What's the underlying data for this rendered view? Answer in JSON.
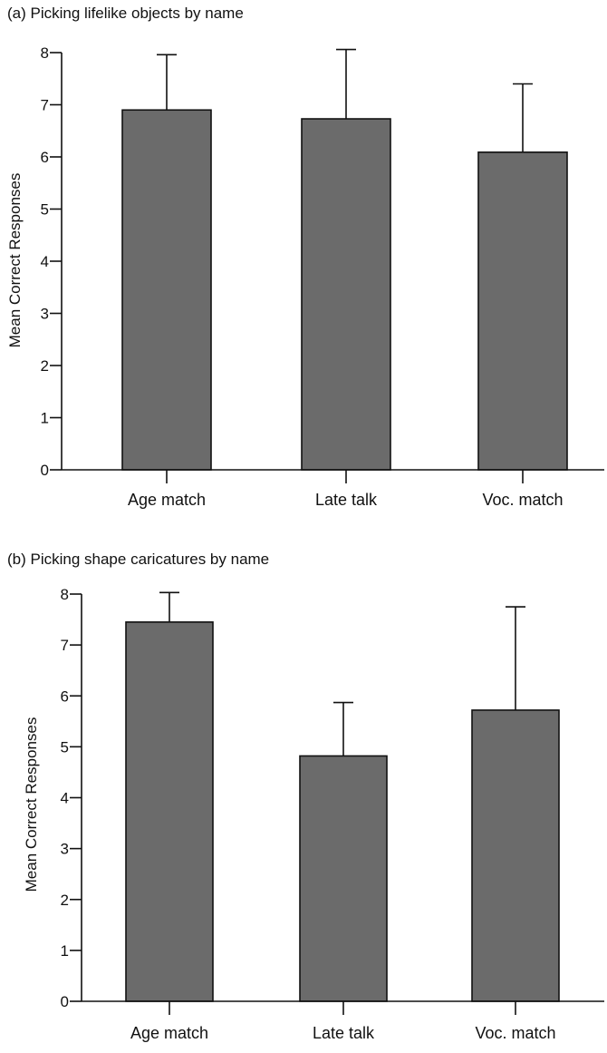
{
  "figure": {
    "bar_color": "#6b6b6b",
    "bar_stroke": "#111111",
    "text_color": "#111111"
  },
  "chart_data": [
    {
      "type": "bar",
      "title": "(a) Picking lifelike objects by name",
      "xlabel": "",
      "ylabel": "Mean Correct Responses",
      "ylim": [
        0,
        8
      ],
      "yticks": [
        "0",
        "1",
        "2",
        "3",
        "4",
        "5",
        "6",
        "7",
        "8"
      ],
      "categories": [
        "Age match",
        "Late talk",
        "Voc. match"
      ],
      "values": [
        6.9,
        6.73,
        6.09
      ],
      "error_upper": [
        1.06,
        1.33,
        1.31
      ],
      "grid": false,
      "legend": "none"
    },
    {
      "type": "bar",
      "title": "(b) Picking shape caricatures by name",
      "xlabel": "",
      "ylabel": "Mean Correct Responses",
      "ylim": [
        0,
        8
      ],
      "yticks": [
        "0",
        "1",
        "2",
        "3",
        "4",
        "5",
        "6",
        "7",
        "8"
      ],
      "categories": [
        "Age match",
        "Late talk",
        "Voc. match"
      ],
      "values": [
        7.45,
        4.82,
        5.72
      ],
      "error_upper": [
        0.58,
        1.05,
        2.03
      ],
      "grid": false,
      "legend": "none"
    }
  ]
}
